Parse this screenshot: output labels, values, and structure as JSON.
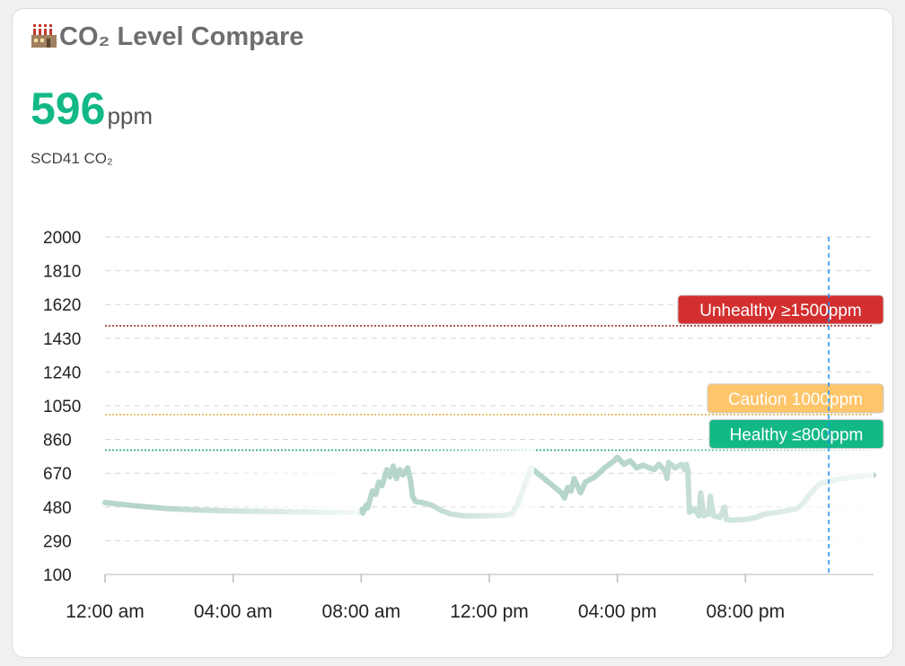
{
  "card": {
    "title": "CO₂ Level Compare",
    "title_icon": "factory-icon",
    "value": "596",
    "unit": "ppm",
    "sensor": "SCD41 CO₂"
  },
  "chart_data": {
    "type": "line",
    "x_unit": "hour of day",
    "xlim": [
      0,
      24
    ],
    "ylim": [
      100,
      2000
    ],
    "y_ticks": [
      100,
      290,
      480,
      670,
      860,
      1050,
      1240,
      1430,
      1620,
      1810,
      2000
    ],
    "x_ticks": [
      {
        "value": 0,
        "label": "12:00 am"
      },
      {
        "value": 4,
        "label": "04:00 am"
      },
      {
        "value": 8,
        "label": "08:00 am"
      },
      {
        "value": 12,
        "label": "12:00 pm"
      },
      {
        "value": 16,
        "label": "04:00 pm"
      },
      {
        "value": 20,
        "label": "08:00 pm"
      }
    ],
    "grid": true,
    "series_color": "#a9cfc0",
    "series": [
      {
        "name": "SCD41 CO₂",
        "points": [
          [
            0,
            505
          ],
          [
            0.5,
            495
          ],
          [
            1,
            485
          ],
          [
            2,
            470
          ],
          [
            3,
            462
          ],
          [
            4,
            458
          ],
          [
            5,
            455
          ],
          [
            6,
            452
          ],
          [
            7,
            450
          ],
          [
            7.9,
            448
          ],
          [
            8.0,
            465
          ],
          [
            8.05,
            445
          ],
          [
            8.15,
            490
          ],
          [
            8.2,
            475
          ],
          [
            8.35,
            570
          ],
          [
            8.45,
            550
          ],
          [
            8.55,
            620
          ],
          [
            8.65,
            600
          ],
          [
            8.8,
            690
          ],
          [
            8.9,
            650
          ],
          [
            9.0,
            710
          ],
          [
            9.1,
            640
          ],
          [
            9.2,
            690
          ],
          [
            9.3,
            660
          ],
          [
            9.45,
            700
          ],
          [
            9.55,
            620
          ],
          [
            9.6,
            540
          ],
          [
            9.7,
            510
          ],
          [
            9.9,
            505
          ],
          [
            10.2,
            490
          ],
          [
            10.5,
            460
          ],
          [
            10.8,
            440
          ],
          [
            11.2,
            430
          ],
          [
            11.8,
            430
          ],
          [
            12.4,
            432
          ],
          [
            12.7,
            440
          ],
          [
            12.9,
            500
          ],
          [
            13.1,
            600
          ],
          [
            13.3,
            700
          ],
          [
            14.25,
            560
          ],
          [
            14.35,
            530
          ],
          [
            14.45,
            590
          ],
          [
            14.55,
            570
          ],
          [
            14.65,
            640
          ],
          [
            14.75,
            600
          ],
          [
            14.85,
            560
          ],
          [
            15.0,
            620
          ],
          [
            15.3,
            650
          ],
          [
            15.6,
            700
          ],
          [
            15.9,
            740
          ],
          [
            16.0,
            760
          ],
          [
            16.2,
            720
          ],
          [
            16.4,
            740
          ],
          [
            16.6,
            700
          ],
          [
            16.8,
            715
          ],
          [
            17.0,
            700
          ],
          [
            17.15,
            690
          ],
          [
            17.3,
            720
          ],
          [
            17.5,
            680
          ],
          [
            17.55,
            640
          ],
          [
            17.6,
            730
          ],
          [
            17.8,
            700
          ],
          [
            18.0,
            720
          ],
          [
            18.1,
            690
          ],
          [
            18.15,
            720
          ],
          [
            18.2,
            690
          ],
          [
            18.25,
            450
          ],
          [
            18.4,
            470
          ],
          [
            18.55,
            430
          ],
          [
            18.6,
            560
          ],
          [
            18.7,
            430
          ],
          [
            18.85,
            440
          ],
          [
            18.9,
            540
          ],
          [
            19.0,
            430
          ],
          [
            19.2,
            420
          ],
          [
            19.35,
            480
          ],
          [
            19.4,
            410
          ],
          [
            19.6,
            405
          ],
          [
            20.0,
            410
          ],
          [
            20.3,
            420
          ],
          [
            20.6,
            440
          ],
          [
            21.0,
            450
          ],
          [
            21.3,
            460
          ],
          [
            21.6,
            470
          ],
          [
            21.8,
            500
          ],
          [
            22.0,
            550
          ],
          [
            22.3,
            610
          ],
          [
            23.0,
            640
          ],
          [
            23.5,
            650
          ],
          [
            24,
            660
          ]
        ]
      }
    ],
    "annotations": [
      {
        "label": "Unhealthy ≥1500ppm",
        "y": 1500,
        "color": "#d32f2f",
        "line_color": "#9b1c1c",
        "text_color": "#ffffff"
      },
      {
        "label": "Caution 1000ppm",
        "y": 1000,
        "color": "#ffc56b",
        "line_color": "#e0b040",
        "text_color": "#ffffff"
      },
      {
        "label": "Healthy ≤800ppm",
        "y": 800,
        "color": "#12b886",
        "line_color": "#12a07a",
        "text_color": "#ffffff"
      }
    ],
    "crosshair_x": 22.6,
    "crosshair_color": "#1e90ff"
  }
}
